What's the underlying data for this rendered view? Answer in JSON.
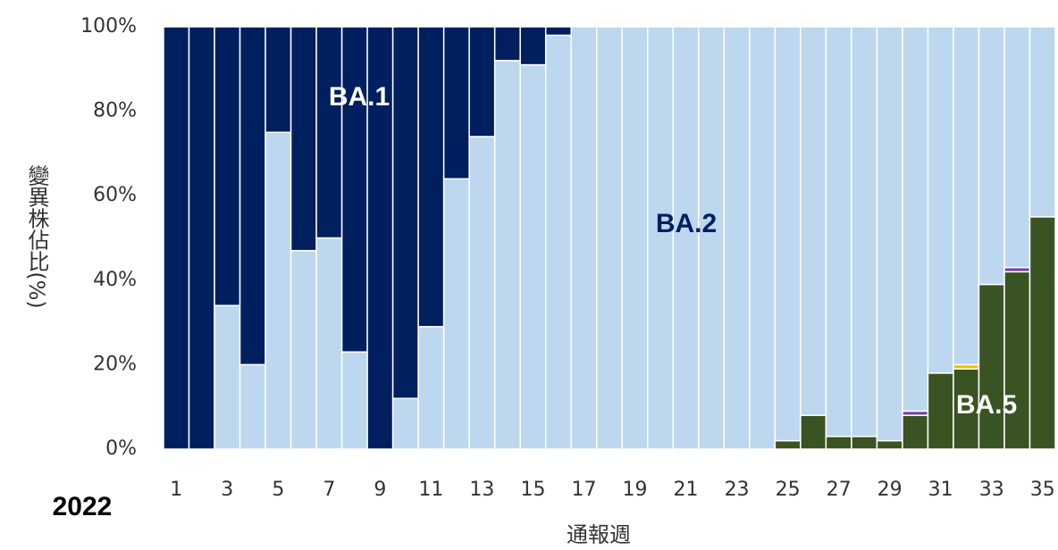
{
  "chart_data": {
    "type": "stacked_bar",
    "categories": [
      "1",
      null,
      "3",
      null,
      "5",
      null,
      "7",
      null,
      "9",
      null,
      "11",
      null,
      "13",
      null,
      "15",
      null,
      "17",
      null,
      "19",
      null,
      "21",
      null,
      "23",
      null,
      "25",
      null,
      "27",
      null,
      "29",
      null,
      "31",
      null,
      "33",
      null,
      "35"
    ],
    "series": [
      {
        "name": "BA.5",
        "color": "#3a5322",
        "values": [
          0,
          0,
          0,
          0,
          0,
          0,
          0,
          0,
          0,
          0,
          0,
          0,
          0,
          0,
          0,
          0,
          0,
          0,
          0,
          0,
          0,
          0,
          0,
          0,
          2,
          8,
          3,
          3,
          2,
          8,
          18,
          19,
          39,
          42,
          55
        ]
      },
      {
        "color": "#f5c000",
        "values": [
          0,
          0,
          0,
          0,
          0,
          0,
          0,
          0,
          0,
          0,
          0,
          0,
          0,
          0,
          0,
          0,
          0,
          0,
          0,
          0,
          0,
          0,
          0,
          0,
          0,
          0,
          0,
          0,
          0,
          0,
          0,
          1,
          0,
          0,
          0
        ]
      },
      {
        "color": "#7a3fa0",
        "values": [
          0,
          0,
          0,
          0,
          0,
          0,
          0,
          0,
          0,
          0,
          0,
          0,
          0,
          0,
          0,
          0,
          0,
          0,
          0,
          0,
          0,
          0,
          0,
          0,
          0,
          0,
          0,
          0,
          0,
          1,
          0,
          0,
          0,
          1,
          0
        ]
      },
      {
        "name": "BA.2",
        "color": "#bdd7ee",
        "values": [
          0,
          0,
          34,
          20,
          75,
          47,
          50,
          23,
          0,
          12,
          29,
          64,
          74,
          92,
          91,
          98,
          100,
          100,
          100,
          100,
          100,
          100,
          100,
          100,
          98,
          92,
          97,
          97,
          98,
          91,
          82,
          80,
          61,
          57,
          45
        ]
      },
      {
        "name": "BA.1",
        "color": "#001f5f",
        "values": [
          100,
          100,
          66,
          80,
          25,
          53,
          50,
          77,
          100,
          88,
          71,
          36,
          26,
          8,
          9,
          2,
          0,
          0,
          0,
          0,
          0,
          0,
          0,
          0,
          0,
          0,
          0,
          0,
          0,
          0,
          0,
          0,
          0,
          0,
          0
        ]
      }
    ],
    "ylim": [
      0,
      100
    ],
    "yticks": [
      {
        "value": 0,
        "label": "0%"
      },
      {
        "value": 20,
        "label": "20%"
      },
      {
        "value": 40,
        "label": "40%"
      },
      {
        "value": 60,
        "label": "60%"
      },
      {
        "value": 80,
        "label": "80%"
      },
      {
        "value": 100,
        "label": "100%"
      }
    ],
    "y_label": "變異株佔比(%)",
    "x_label": "通報週",
    "year": "2022"
  }
}
